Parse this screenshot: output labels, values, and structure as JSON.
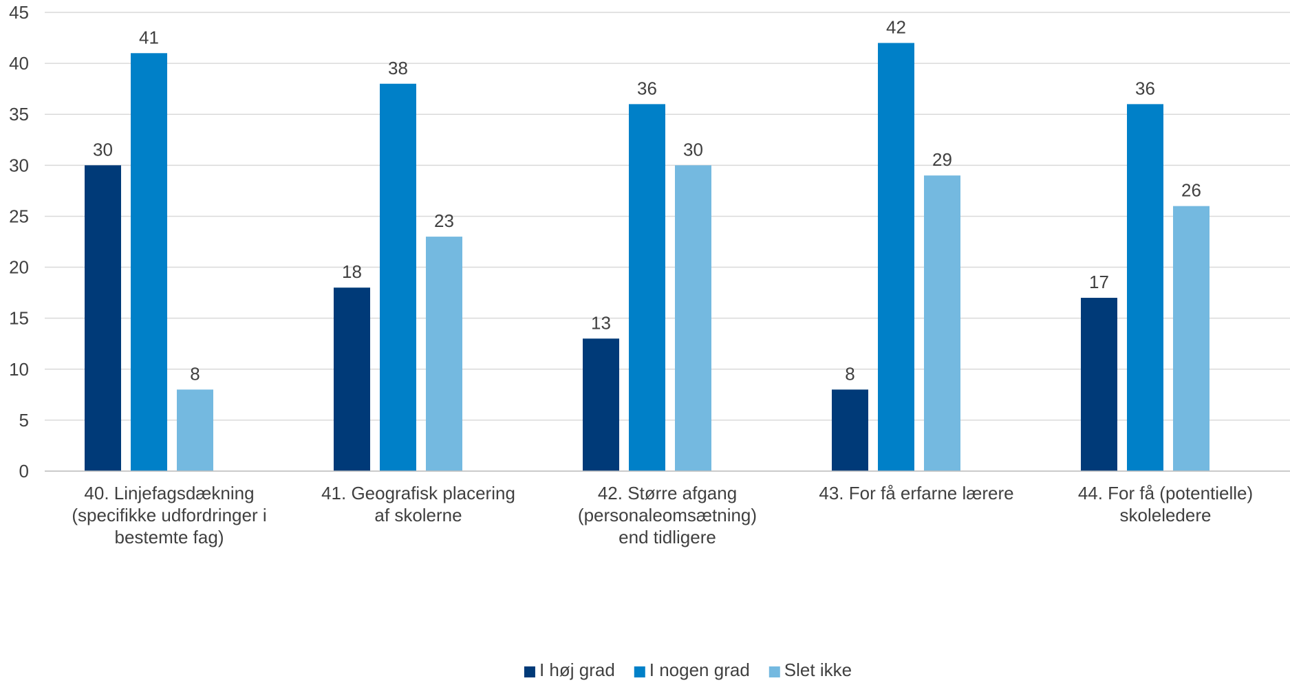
{
  "chart_data": {
    "type": "bar",
    "title": "",
    "xlabel": "",
    "ylabel": "",
    "ylim": [
      0,
      45
    ],
    "y_ticks": [
      "0",
      "5",
      "10",
      "15",
      "20",
      "25",
      "30",
      "35",
      "40",
      "45"
    ],
    "grid": true,
    "legend_position": "bottom",
    "categories": [
      [
        "40. Linjefagsdækning",
        "(specifikke udfordringer i",
        "bestemte fag)"
      ],
      [
        "41. Geografisk placering",
        "af skolerne"
      ],
      [
        "42. Større afgang",
        "(personaleomsætning)",
        "end tidligere"
      ],
      [
        "43. For få erfarne lærere"
      ],
      [
        "44. For få (potentielle)",
        "skoleledere"
      ]
    ],
    "series": [
      {
        "name": "I høj grad",
        "color": "#003A78",
        "values": [
          30,
          18,
          13,
          8,
          17
        ]
      },
      {
        "name": "I nogen grad",
        "color": "#0080C8",
        "values": [
          41,
          38,
          36,
          42,
          36
        ]
      },
      {
        "name": "Slet ikke",
        "color": "#74B9E0",
        "values": [
          8,
          23,
          30,
          29,
          26
        ]
      }
    ]
  }
}
